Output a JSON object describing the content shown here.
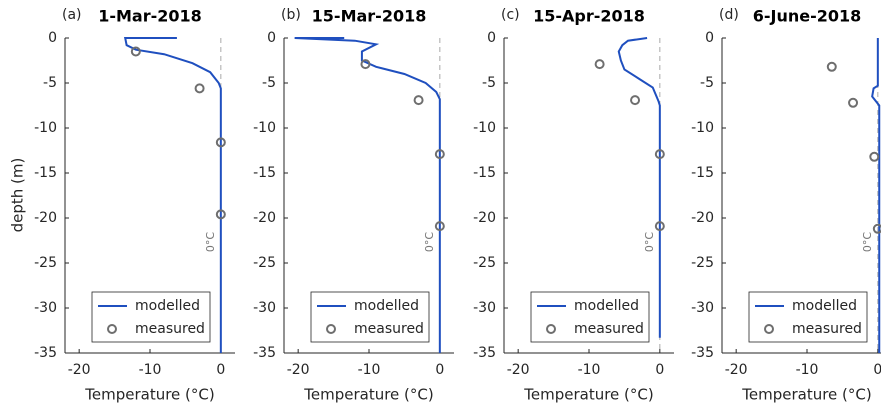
{
  "chart_data": [
    {
      "type": "line",
      "panel": "(a)",
      "title": "1-Mar-2018",
      "xlabel": "Temperature (°C)",
      "ylabel": "depth (m)",
      "annotation": "0°C",
      "xlim": [
        -22,
        2
      ],
      "ylim": [
        -35,
        0
      ],
      "xticks": [
        -20,
        -10,
        0
      ],
      "yticks": [
        0,
        -5,
        -10,
        -15,
        -20,
        -25,
        -30,
        -35
      ],
      "series": [
        {
          "name": "modelled",
          "color": "#1f4fbf",
          "x": [
            -6.2,
            -13.5,
            -13.3,
            -12,
            -8,
            -4,
            -1.5,
            -0.3,
            0,
            0
          ],
          "y": [
            0,
            0,
            -0.8,
            -1.3,
            -1.8,
            -2.8,
            -3.8,
            -5,
            -5.6,
            -35
          ]
        },
        {
          "name": "measured",
          "color": "#6e6e6e",
          "x": [
            -12,
            -3,
            0,
            0
          ],
          "y": [
            -1.5,
            -5.6,
            -11.6,
            -19.6
          ]
        }
      ]
    },
    {
      "type": "line",
      "panel": "(b)",
      "title": "15-Mar-2018",
      "xlabel": "Temperature (°C)",
      "annotation": "0°C",
      "xlim": [
        -22,
        2
      ],
      "ylim": [
        -35,
        0
      ],
      "xticks": [
        -20,
        -10,
        0
      ],
      "yticks": [
        0,
        -5,
        -10,
        -15,
        -20,
        -25,
        -30,
        -35
      ],
      "series": [
        {
          "name": "modelled",
          "color": "#1f4fbf",
          "x": [
            -13.5,
            -20.5,
            -12,
            -9,
            -11,
            -11,
            -9,
            -5,
            -2,
            -0.5,
            0,
            0
          ],
          "y": [
            0,
            0,
            -0.3,
            -0.7,
            -1.5,
            -2.5,
            -3.2,
            -4,
            -5,
            -6,
            -6.8,
            -35
          ]
        },
        {
          "name": "measured",
          "color": "#6e6e6e",
          "x": [
            -10.5,
            -3,
            0,
            0
          ],
          "y": [
            -2.9,
            -6.9,
            -12.9,
            -20.9
          ]
        }
      ]
    },
    {
      "type": "line",
      "panel": "(c)",
      "title": "15-Apr-2018",
      "xlabel": "Temperature (°C)",
      "annotation": "0°C",
      "xlim": [
        -22,
        2
      ],
      "ylim": [
        -35,
        0
      ],
      "xticks": [
        -20,
        -10,
        0
      ],
      "yticks": [
        0,
        -5,
        -10,
        -15,
        -20,
        -25,
        -30,
        -35
      ],
      "series": [
        {
          "name": "modelled",
          "color": "#1f4fbf",
          "x": [
            -1.8,
            -4.5,
            -5.3,
            -5.8,
            -5.5,
            -5,
            -3,
            -1,
            -0.2,
            0,
            0
          ],
          "y": [
            0,
            -0.3,
            -0.8,
            -1.5,
            -2.5,
            -3.5,
            -4.5,
            -5.5,
            -7,
            -7.5,
            -33.3
          ]
        },
        {
          "name": "measured",
          "color": "#6e6e6e",
          "x": [
            -8.5,
            -3.5,
            0,
            0
          ],
          "y": [
            -2.9,
            -6.9,
            -12.9,
            -20.9
          ]
        }
      ]
    },
    {
      "type": "line",
      "panel": "(d)",
      "title": "6-June-2018",
      "xlabel": "Temperature (°C)",
      "annotation": "0°C",
      "xlim": [
        -22,
        2
      ],
      "ylim": [
        -35,
        0
      ],
      "xticks": [
        -20,
        -10,
        0
      ],
      "yticks": [
        0,
        -5,
        -10,
        -15,
        -20,
        -25,
        -30,
        -35
      ],
      "series": [
        {
          "name": "modelled",
          "color": "#1f4fbf",
          "x": [
            0,
            0,
            -0.6,
            -0.8,
            0.2,
            0.2
          ],
          "y": [
            0,
            -5.3,
            -5.6,
            -6.5,
            -7.5,
            -35
          ]
        },
        {
          "name": "measured",
          "color": "#6e6e6e",
          "x": [
            -6.5,
            -3.5,
            -0.5,
            0
          ],
          "y": [
            -3.2,
            -7.2,
            -13.2,
            -21.2
          ]
        }
      ]
    }
  ]
}
